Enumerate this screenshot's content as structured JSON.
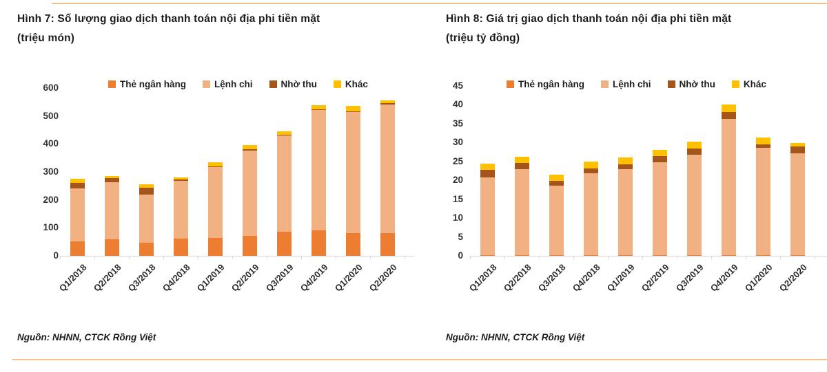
{
  "styles": {
    "rule_color": "#F2C191",
    "axis_color": "#D6D6D6",
    "accent_orange": "#ED7D31",
    "accent_peach": "#F2B183",
    "accent_brown": "#A5541A",
    "accent_gold": "#FFC000"
  },
  "chart_data": [
    {
      "id": "hinh-7",
      "type": "bar",
      "stacked": true,
      "title": "Hình 7: Số lượng giao dịch thanh toán nội địa phi tiền mặt",
      "subtitle": "(triệu món)",
      "source": "Nguồn: NHNN, CTCK Rồng Việt",
      "categories": [
        "Q1/2018",
        "Q2/2018",
        "Q3/2018",
        "Q4/2018",
        "Q1/2019",
        "Q2/2019",
        "Q3/2019",
        "Q4/2019",
        "Q1/2020",
        "Q2/2020"
      ],
      "series": [
        {
          "name": "Thẻ ngân hàng",
          "color": "#ED7D31",
          "values": [
            52,
            60,
            46,
            62,
            63,
            71,
            85,
            91,
            80,
            82
          ]
        },
        {
          "name": "Lệnh chi",
          "color": "#F2B183",
          "values": [
            188,
            202,
            172,
            206,
            255,
            306,
            347,
            430,
            434,
            460
          ]
        },
        {
          "name": "Nhờ thu",
          "color": "#A5541A",
          "values": [
            21,
            16,
            25,
            4,
            2,
            4,
            2,
            3,
            2,
            4
          ]
        },
        {
          "name": "Khác",
          "color": "#FFC000",
          "values": [
            14,
            8,
            13,
            8,
            15,
            15,
            11,
            14,
            19,
            10
          ]
        }
      ],
      "xlabel": "",
      "ylabel": "",
      "ylim": [
        0,
        600
      ],
      "yticks": [
        0,
        100,
        200,
        300,
        400,
        500,
        600
      ],
      "legend_position": "top",
      "grid": false
    },
    {
      "id": "hinh-8",
      "type": "bar",
      "stacked": true,
      "title": "Hình 8: Giá trị giao dịch thanh toán nội địa phi tiền mặt",
      "subtitle": "(triệu tỷ đồng)",
      "source": "Nguồn: NHNN, CTCK Rồng Việt",
      "categories": [
        "Q1/2018",
        "Q2/2018",
        "Q3/2018",
        "Q4/2018",
        "Q1/2019",
        "Q2/2019",
        "Q3/2019",
        "Q4/2019",
        "Q1/2020",
        "Q2/2020"
      ],
      "series": [
        {
          "name": "Thẻ ngân hàng",
          "color": "#ED7D31",
          "values": [
            0.1,
            0.1,
            0.1,
            0.1,
            0.1,
            0.1,
            0.1,
            0.1,
            0.1,
            0.1
          ]
        },
        {
          "name": "Lệnh chi",
          "color": "#F2B183",
          "values": [
            20.7,
            22.9,
            18.4,
            21.8,
            22.9,
            24.6,
            26.6,
            36.1,
            28.5,
            27.1
          ]
        },
        {
          "name": "Nhờ thu",
          "color": "#A5541A",
          "values": [
            2.0,
            1.6,
            1.4,
            1.2,
            1.3,
            1.8,
            1.7,
            1.8,
            1.0,
            1.7
          ]
        },
        {
          "name": "Khác",
          "color": "#FFC000",
          "values": [
            1.7,
            1.7,
            1.6,
            1.8,
            1.7,
            1.5,
            1.9,
            2.0,
            1.7,
            1.0
          ]
        }
      ],
      "xlabel": "",
      "ylabel": "",
      "ylim": [
        0,
        45
      ],
      "yticks": [
        0,
        5,
        10,
        15,
        20,
        25,
        30,
        35,
        40,
        45
      ],
      "legend_position": "top",
      "grid": false
    }
  ]
}
